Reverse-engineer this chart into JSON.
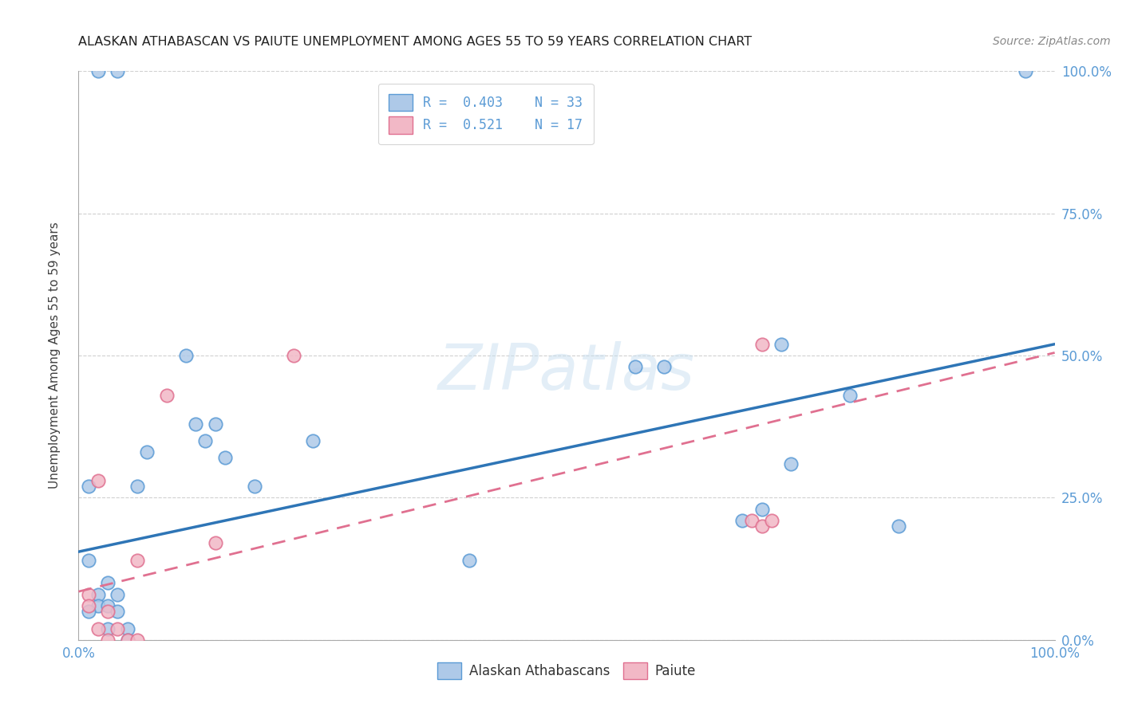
{
  "title": "ALASKAN ATHABASCAN VS PAIUTE UNEMPLOYMENT AMONG AGES 55 TO 59 YEARS CORRELATION CHART",
  "source": "Source: ZipAtlas.com",
  "ylabel": "Unemployment Among Ages 55 to 59 years",
  "xlim": [
    0,
    1
  ],
  "ylim": [
    0,
    1
  ],
  "blue_R": "0.403",
  "blue_N": "33",
  "pink_R": "0.521",
  "pink_N": "17",
  "blue_fill_color": "#aec9e8",
  "blue_edge_color": "#5b9bd5",
  "pink_fill_color": "#f2b8c6",
  "pink_edge_color": "#e07090",
  "blue_line_color": "#2e75b6",
  "pink_line_color": "#e07090",
  "tick_label_color": "#5b9bd5",
  "axis_label_color": "#404040",
  "blue_scatter_x": [
    0.02,
    0.04,
    0.11,
    0.13,
    0.01,
    0.01,
    0.02,
    0.02,
    0.03,
    0.03,
    0.04,
    0.04,
    0.05,
    0.05,
    0.06,
    0.07,
    0.12,
    0.14,
    0.15,
    0.18,
    0.24,
    0.4,
    0.57,
    0.6,
    0.68,
    0.7,
    0.72,
    0.73,
    0.79,
    0.84,
    0.97,
    0.01,
    0.03
  ],
  "blue_scatter_y": [
    1.0,
    1.0,
    0.5,
    0.35,
    0.27,
    0.14,
    0.08,
    0.06,
    0.06,
    0.1,
    0.08,
    0.05,
    0.02,
    0.0,
    0.27,
    0.33,
    0.38,
    0.38,
    0.32,
    0.27,
    0.35,
    0.14,
    0.48,
    0.48,
    0.21,
    0.23,
    0.52,
    0.31,
    0.43,
    0.2,
    1.0,
    0.05,
    0.02
  ],
  "pink_scatter_x": [
    0.01,
    0.01,
    0.02,
    0.03,
    0.04,
    0.05,
    0.06,
    0.06,
    0.14,
    0.22,
    0.69,
    0.7,
    0.7,
    0.71,
    0.02,
    0.09,
    0.03
  ],
  "pink_scatter_y": [
    0.08,
    0.06,
    0.02,
    0.05,
    0.02,
    0.0,
    0.0,
    0.14,
    0.17,
    0.5,
    0.21,
    0.2,
    0.52,
    0.21,
    0.28,
    0.43,
    0.0
  ],
  "watermark": "ZIPatlas",
  "legend_labels": [
    "Alaskan Athabascans",
    "Paiute"
  ],
  "blue_trend_intercept": 0.155,
  "blue_trend_slope": 0.365,
  "pink_trend_intercept": 0.085,
  "pink_trend_slope": 0.42,
  "grid_color": "#d0d0d0",
  "legend_border_color": "#cccccc"
}
